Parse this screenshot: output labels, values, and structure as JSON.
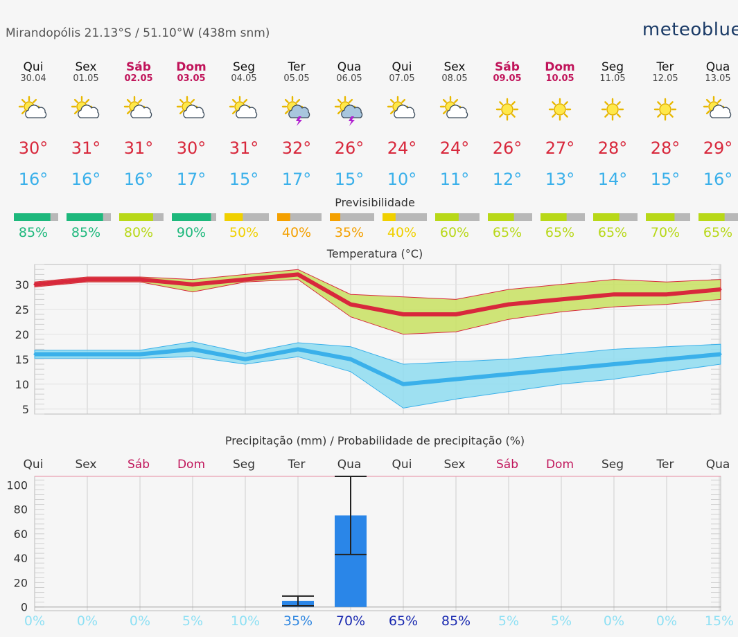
{
  "header": {
    "location": "Mirandopólis  21.13°S / 51.10°W (438m snm)",
    "brand": "meteoblue"
  },
  "colors": {
    "tmax": "#d8283c",
    "tmin": "#3ab0ea",
    "weekend": "#c0145a",
    "precip_bar": "#2a86e8",
    "conf_high": "#1db87c",
    "conf_med": "#b8d818",
    "conf_low": "#f0d000",
    "conf_vlow": "#f4a000"
  },
  "days": [
    {
      "weekday": "Qui",
      "date": "30.04",
      "weekend": false,
      "icon": "sun-cloud-icon",
      "tmax": "30°",
      "tmin": "16°",
      "predictability": "85%",
      "pred_value": 85,
      "precip_prob": "0%",
      "pred_level": "high",
      "prob_level": "none"
    },
    {
      "weekday": "Sex",
      "date": "01.05",
      "weekend": false,
      "icon": "sun-cloud-icon",
      "tmax": "31°",
      "tmin": "16°",
      "predictability": "85%",
      "pred_value": 85,
      "precip_prob": "0%",
      "pred_level": "high",
      "prob_level": "none"
    },
    {
      "weekday": "Sáb",
      "date": "02.05",
      "weekend": true,
      "icon": "sun-cloud-icon",
      "tmax": "31°",
      "tmin": "16°",
      "predictability": "80%",
      "pred_value": 80,
      "precip_prob": "0%",
      "pred_level": "med",
      "prob_level": "none"
    },
    {
      "weekday": "Dom",
      "date": "03.05",
      "weekend": true,
      "icon": "sun-cloud-icon",
      "tmax": "30°",
      "tmin": "17°",
      "predictability": "90%",
      "pred_value": 90,
      "precip_prob": "5%",
      "pred_level": "high",
      "prob_level": "none"
    },
    {
      "weekday": "Seg",
      "date": "04.05",
      "weekend": false,
      "icon": "sun-cloud-icon",
      "tmax": "31°",
      "tmin": "15°",
      "predictability": "50%",
      "pred_value": 50,
      "precip_prob": "10%",
      "pred_level": "low",
      "prob_level": "none"
    },
    {
      "weekday": "Ter",
      "date": "05.05",
      "weekend": false,
      "icon": "thunderstorm-icon",
      "tmax": "32°",
      "tmin": "17°",
      "predictability": "40%",
      "pred_value": 40,
      "precip_prob": "35%",
      "pred_level": "vlow",
      "prob_level": "med"
    },
    {
      "weekday": "Qua",
      "date": "06.05",
      "weekend": false,
      "icon": "thunderstorm-icon",
      "tmax": "26°",
      "tmin": "15°",
      "predictability": "35%",
      "pred_value": 35,
      "precip_prob": "70%",
      "pred_level": "vlow",
      "prob_level": "high"
    },
    {
      "weekday": "Qui",
      "date": "07.05",
      "weekend": false,
      "icon": "sun-cloud-icon",
      "tmax": "24°",
      "tmin": "10°",
      "predictability": "40%",
      "pred_value": 40,
      "precip_prob": "65%",
      "pred_level": "low",
      "prob_level": "high"
    },
    {
      "weekday": "Sex",
      "date": "08.05",
      "weekend": false,
      "icon": "sun-cloud-icon",
      "tmax": "24°",
      "tmin": "11°",
      "predictability": "60%",
      "pred_value": 60,
      "precip_prob": "85%",
      "pred_level": "med",
      "prob_level": "high"
    },
    {
      "weekday": "Sáb",
      "date": "09.05",
      "weekend": true,
      "icon": "sun-icon",
      "tmax": "26°",
      "tmin": "12°",
      "predictability": "65%",
      "pred_value": 65,
      "precip_prob": "5%",
      "pred_level": "med",
      "prob_level": "none"
    },
    {
      "weekday": "Dom",
      "date": "10.05",
      "weekend": true,
      "icon": "sun-icon",
      "tmax": "27°",
      "tmin": "13°",
      "predictability": "65%",
      "pred_value": 65,
      "precip_prob": "5%",
      "pred_level": "med",
      "prob_level": "none"
    },
    {
      "weekday": "Seg",
      "date": "11.05",
      "weekend": false,
      "icon": "sun-icon",
      "tmax": "28°",
      "tmin": "14°",
      "predictability": "65%",
      "pred_value": 65,
      "precip_prob": "0%",
      "pred_level": "med",
      "prob_level": "none"
    },
    {
      "weekday": "Ter",
      "date": "12.05",
      "weekend": false,
      "icon": "sun-icon",
      "tmax": "28°",
      "tmin": "15°",
      "predictability": "70%",
      "pred_value": 70,
      "precip_prob": "0%",
      "pred_level": "med",
      "prob_level": "none"
    },
    {
      "weekday": "Qua",
      "date": "13.05",
      "weekend": false,
      "icon": "sun-cloud-icon",
      "tmax": "29°",
      "tmin": "16°",
      "predictability": "65%",
      "pred_value": 65,
      "precip_prob": "15%",
      "pred_level": "med",
      "prob_level": "none"
    }
  ],
  "predictability_title": "Previsibilidade",
  "chart_data": [
    {
      "type": "line",
      "title": "Temperatura (°C)",
      "ylim": [
        4,
        34
      ],
      "yticks": [
        "5",
        "10",
        "15",
        "20",
        "25",
        "30"
      ],
      "grid": true,
      "x": [
        "30.04",
        "01.05",
        "02.05",
        "03.05",
        "04.05",
        "05.05",
        "06.05",
        "07.05",
        "08.05",
        "09.05",
        "10.05",
        "11.05",
        "12.05",
        "13.05"
      ],
      "series": [
        {
          "values": [
            30,
            31,
            31,
            30,
            31,
            32,
            26,
            24,
            24,
            26,
            27,
            28,
            28,
            29
          ],
          "band_upper": [
            30.5,
            31.5,
            31.5,
            31,
            32,
            33,
            28,
            27.5,
            27,
            29,
            30,
            31,
            30.5,
            31
          ],
          "band_lower": [
            29.5,
            30.5,
            30.5,
            28.5,
            30.5,
            31,
            23.5,
            20,
            20.5,
            23,
            24.5,
            25.5,
            26,
            27
          ]
        },
        {
          "values": [
            16,
            16,
            16,
            17,
            15,
            17,
            15,
            10,
            11,
            12,
            13,
            14,
            15,
            16
          ],
          "band_upper": [
            16.8,
            16.8,
            16.8,
            18.5,
            16.2,
            18.3,
            17.5,
            14,
            14.5,
            15,
            16,
            17,
            17.5,
            18
          ],
          "band_lower": [
            15.2,
            15.2,
            15.2,
            15.5,
            14,
            15.5,
            12.5,
            5.2,
            7,
            8.5,
            10,
            11,
            12.5,
            14
          ]
        }
      ]
    },
    {
      "type": "bar",
      "title": "Precipitação (mm) / Probabilidade de precipitação (%)",
      "ylim": [
        -3,
        107
      ],
      "yticks": [
        "0",
        "20",
        "40",
        "60",
        "80",
        "100"
      ],
      "grid": true,
      "categories": [
        "Qui",
        "Sex",
        "Sáb",
        "Dom",
        "Seg",
        "Ter",
        "Qua",
        "Qui",
        "Sex",
        "Sáb",
        "Dom",
        "Seg",
        "Ter",
        "Qua"
      ],
      "values": [
        0,
        0,
        0,
        0,
        0,
        5,
        75,
        0,
        0,
        0,
        0,
        0,
        0,
        0
      ],
      "error_low": [
        0,
        0,
        0,
        0,
        0,
        1,
        43,
        0,
        0,
        0,
        0,
        0,
        0,
        0
      ],
      "error_high": [
        0,
        0,
        0,
        0,
        0,
        9,
        107,
        0,
        0,
        0,
        0,
        0,
        0,
        0
      ]
    }
  ]
}
